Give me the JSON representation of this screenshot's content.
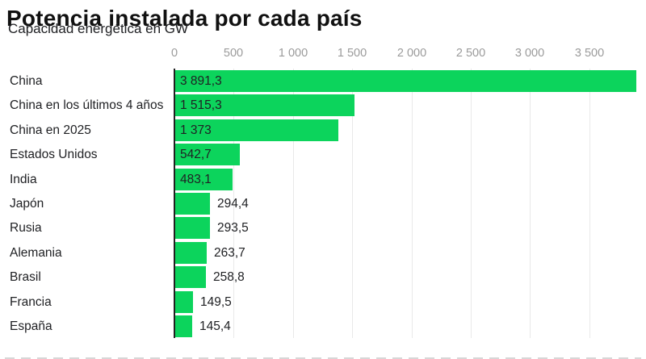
{
  "header": {
    "title": "Potencia instalada por cada país",
    "subtitle": "Capacidad energética en GW"
  },
  "chart_data": {
    "type": "bar",
    "orientation": "horizontal",
    "title": "Potencia instalada por cada país",
    "subtitle": "Capacidad energética en GW",
    "unit": "GW",
    "categories": [
      "China",
      "China en los últimos 4 años",
      "China en 2025",
      "Estados Unidos",
      "India",
      "Japón",
      "Rusia",
      "Alemania",
      "Brasil",
      "Francia",
      "España"
    ],
    "values": [
      3891.3,
      1515.3,
      1373,
      542.7,
      483.1,
      294.4,
      293.5,
      263.7,
      258.8,
      149.5,
      145.4
    ],
    "value_labels": [
      "3 891,3",
      "1 515,3",
      "1 373",
      "542,7",
      "483,1",
      "294,4",
      "293,5",
      "263,7",
      "258,8",
      "149,5",
      "145,4"
    ],
    "axis_ticks": [
      0,
      500,
      1000,
      1500,
      2000,
      2500,
      3000,
      3500
    ],
    "axis_tick_labels": [
      "0",
      "500",
      "1 000",
      "1 500",
      "2 000",
      "2 500",
      "3 000",
      "3 500"
    ],
    "xlim": [
      0,
      3970
    ],
    "grid": true,
    "legend": "none",
    "colors": {
      "bar": "#0cd45c",
      "zero_axis": "#212121",
      "grid_line": "#e9e9e9",
      "tick_text": "#9b9b9b",
      "label_text": "#202124",
      "title_text": "#111111"
    }
  }
}
